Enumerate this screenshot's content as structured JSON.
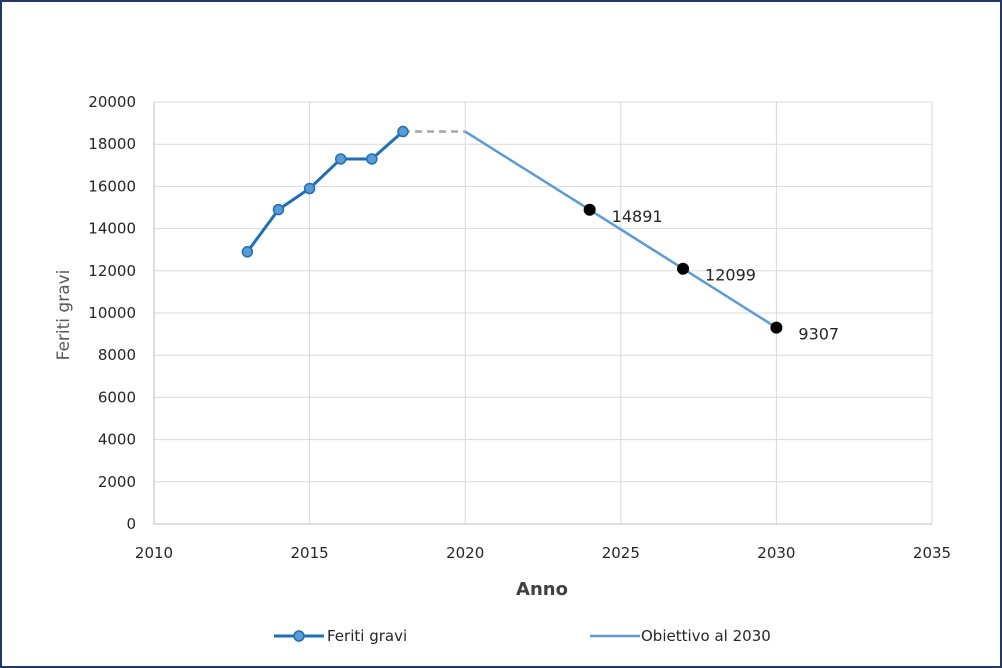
{
  "chart_data": {
    "type": "line",
    "title": "",
    "xlabel": "Anno",
    "ylabel": "Feriti gravi",
    "xlim": [
      2010,
      2035
    ],
    "ylim": [
      0,
      20000
    ],
    "x_ticks": [
      "2010",
      "2015",
      "2020",
      "2025",
      "2030",
      "2035"
    ],
    "y_ticks": [
      "0",
      "2000",
      "4000",
      "6000",
      "8000",
      "10000",
      "12000",
      "14000",
      "16000",
      "18000",
      "20000"
    ],
    "grid": true,
    "legend_position": "bottom",
    "series": [
      {
        "name": "Feriti gravi",
        "color": "#1f6fb5",
        "marker": "circle",
        "x": [
          2013,
          2014,
          2015,
          2016,
          2017,
          2018
        ],
        "y": [
          12900,
          14900,
          15900,
          17300,
          17300,
          18600
        ]
      },
      {
        "name": "Obiettivo al 2030",
        "color": "#5b9bd5",
        "marker": "none",
        "x": [
          2020,
          2024,
          2027,
          2030
        ],
        "y": [
          18600,
          14891,
          12099,
          9307
        ]
      }
    ],
    "connector": {
      "style": "dashed",
      "color": "#a6a6a6",
      "x": [
        2018,
        2020
      ],
      "y": [
        18600,
        18600
      ]
    },
    "highlighted_points": [
      {
        "x": 2024,
        "y": 14891,
        "label": "14891"
      },
      {
        "x": 2027,
        "y": 12099,
        "label": "12099"
      },
      {
        "x": 2030,
        "y": 9307,
        "label": "9307"
      }
    ]
  }
}
